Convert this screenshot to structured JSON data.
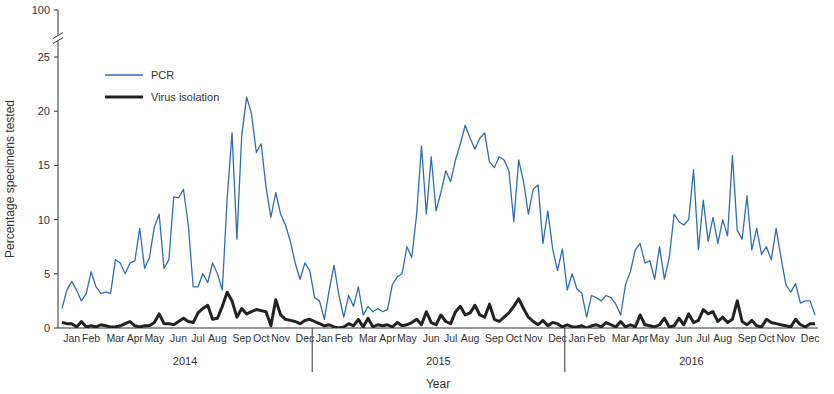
{
  "chart_data": {
    "type": "line",
    "x_label": "Year",
    "y_label": "Percentage specimens tested",
    "year_labels": [
      "2014",
      "2015",
      "2016"
    ],
    "categories": [
      null,
      null,
      "Jan",
      null,
      null,
      null,
      "Feb",
      null,
      null,
      null,
      null,
      "Mar",
      null,
      null,
      null,
      "Apr",
      null,
      null,
      null,
      "May",
      null,
      null,
      null,
      null,
      "Jun",
      null,
      null,
      null,
      "Jul",
      null,
      null,
      null,
      "Aug",
      null,
      null,
      null,
      null,
      "Sep",
      null,
      null,
      null,
      "Oct",
      null,
      null,
      null,
      "Nov",
      null,
      null,
      null,
      null,
      "Dec",
      null,
      null,
      null,
      "Jan",
      null,
      null,
      null,
      "Feb",
      null,
      null,
      null,
      null,
      "Mar",
      null,
      null,
      null,
      "Apr",
      null,
      null,
      null,
      "May",
      null,
      null,
      null,
      null,
      "Jun",
      null,
      null,
      null,
      "Jul",
      null,
      null,
      null,
      "Aug",
      null,
      null,
      null,
      null,
      "Sep",
      null,
      null,
      null,
      "Oct",
      null,
      null,
      null,
      "Nov",
      null,
      null,
      null,
      null,
      "Dec",
      null,
      null,
      null,
      "Jan",
      null,
      null,
      null,
      "Feb",
      null,
      null,
      null,
      null,
      "Mar",
      null,
      null,
      null,
      "Apr",
      null,
      null,
      null,
      "May",
      null,
      null,
      null,
      null,
      "Jun",
      null,
      null,
      null,
      "Jul",
      null,
      null,
      null,
      "Aug",
      null,
      null,
      null,
      null,
      "Sep",
      null,
      null,
      null,
      "Oct",
      null,
      null,
      null,
      "Nov",
      null,
      null,
      null,
      null,
      "Dec",
      null
    ],
    "series": [
      {
        "name": "PCR",
        "color": "#2f6db5",
        "line_style": "solid",
        "values": [
          1.8,
          3.5,
          4.3,
          3.5,
          2.5,
          3.2,
          5.2,
          3.8,
          3.2,
          3.3,
          3.2,
          6.3,
          6.0,
          5.0,
          6.0,
          6.2,
          9.2,
          5.5,
          6.5,
          9.3,
          10.5,
          5.5,
          6.3,
          12.1,
          12.0,
          12.8,
          9.5,
          3.8,
          3.8,
          5.0,
          4.2,
          6.0,
          5.0,
          3.5,
          12.0,
          18.0,
          8.2,
          17.8,
          21.3,
          19.8,
          16.2,
          17.0,
          13.0,
          10.2,
          12.5,
          10.5,
          9.5,
          8.0,
          6.0,
          4.5,
          6.0,
          5.3,
          2.8,
          2.5,
          0.8,
          3.5,
          5.8,
          3.0,
          1.0,
          3.0,
          2.0,
          3.8,
          1.2,
          2.0,
          1.5,
          1.8,
          1.5,
          1.7,
          4.0,
          4.7,
          5.0,
          7.5,
          6.5,
          10.5,
          16.8,
          10.5,
          15.8,
          10.8,
          12.5,
          14.5,
          13.5,
          15.5,
          17.0,
          18.7,
          17.5,
          16.5,
          17.5,
          18.0,
          15.3,
          14.8,
          15.8,
          15.5,
          14.5,
          9.8,
          15.5,
          13.5,
          10.5,
          12.8,
          13.2,
          7.8,
          10.8,
          7.3,
          5.3,
          7.3,
          3.5,
          5.0,
          3.6,
          3.2,
          1.0,
          3.0,
          2.8,
          2.5,
          3.0,
          2.8,
          2.2,
          1.2,
          4.0,
          5.2,
          7.2,
          7.8,
          6.0,
          6.2,
          4.5,
          7.5,
          4.5,
          6.5,
          10.5,
          9.8,
          9.5,
          10.0,
          14.6,
          7.2,
          11.8,
          8.0,
          10.2,
          7.8,
          10.0,
          8.5,
          15.9,
          9.0,
          8.2,
          12.2,
          7.2,
          9.2,
          6.8,
          7.5,
          6.3,
          9.2,
          6.5,
          4.0,
          3.3,
          4.1,
          2.3,
          2.5,
          2.5,
          1.2
        ]
      },
      {
        "name": "Virus isolation",
        "color": "#222222",
        "line_style": "solid",
        "values": [
          0.5,
          0.4,
          0.4,
          0.1,
          0.6,
          0.1,
          0.2,
          0.1,
          0.3,
          0.2,
          0.1,
          0.1,
          0.2,
          0.4,
          0.6,
          0.2,
          0.1,
          0.2,
          0.2,
          0.5,
          1.3,
          0.4,
          0.4,
          0.3,
          0.6,
          0.9,
          0.6,
          0.5,
          1.4,
          1.8,
          2.1,
          0.8,
          0.9,
          2.0,
          3.3,
          2.5,
          1.0,
          1.8,
          1.3,
          1.5,
          1.7,
          1.6,
          1.5,
          0.2,
          2.6,
          1.2,
          0.8,
          0.7,
          0.6,
          0.4,
          0.7,
          0.8,
          0.6,
          0.4,
          0.2,
          0.3,
          0.1,
          0.0,
          0.1,
          0.4,
          0.2,
          0.8,
          0.1,
          0.9,
          0.1,
          0.3,
          0.2,
          0.3,
          0.1,
          0.5,
          0.2,
          0.3,
          0.5,
          0.8,
          0.3,
          1.5,
          0.5,
          0.3,
          1.2,
          0.6,
          0.4,
          1.5,
          2.0,
          1.2,
          1.4,
          2.1,
          1.2,
          1.0,
          2.2,
          0.8,
          0.6,
          1.0,
          1.4,
          2.0,
          2.7,
          1.8,
          1.0,
          0.6,
          0.3,
          0.7,
          0.2,
          0.5,
          0.4,
          0.1,
          0.3,
          0.1,
          0.1,
          0.2,
          0.0,
          0.2,
          0.3,
          0.1,
          0.5,
          0.3,
          0.1,
          0.6,
          0.1,
          0.3,
          0.1,
          1.2,
          0.3,
          0.2,
          0.1,
          0.3,
          0.9,
          0.1,
          0.2,
          0.9,
          0.3,
          1.3,
          0.5,
          0.7,
          1.7,
          1.3,
          1.5,
          0.6,
          1.0,
          0.5,
          0.8,
          2.5,
          0.6,
          0.3,
          0.7,
          0.2,
          0.1,
          0.8,
          0.5,
          0.4,
          0.3,
          0.2,
          0.1,
          0.8,
          0.3,
          0.1,
          0.4,
          0.4
        ]
      }
    ],
    "ylim": [
      0,
      100
    ],
    "yticks": [
      0,
      5,
      10,
      15,
      20,
      25,
      100
    ],
    "grid": false,
    "legend": "upper left"
  }
}
